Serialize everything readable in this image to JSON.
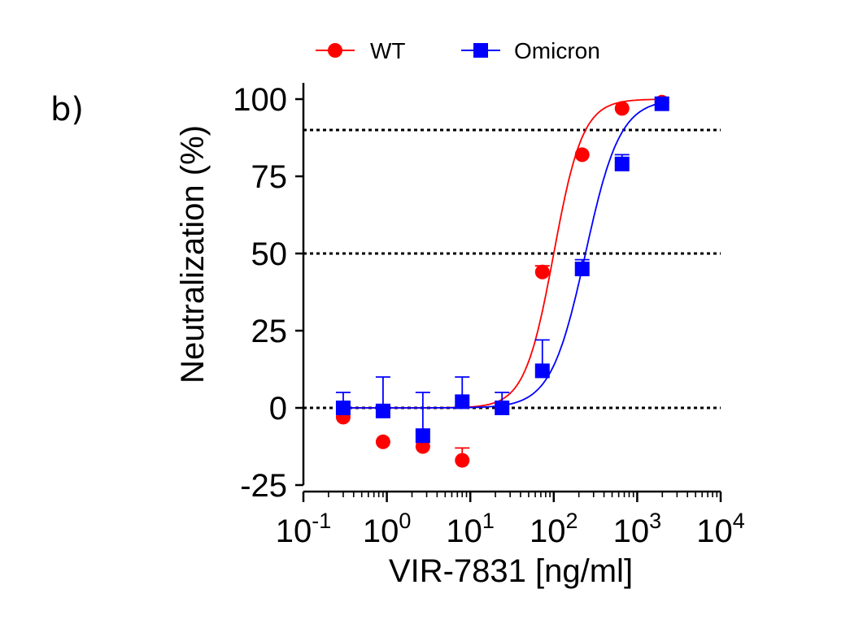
{
  "panel_label": "b)",
  "chart_data": {
    "type": "scatter",
    "xlabel": "VIR-7831 [ng/ml]",
    "ylabel": "Neutralization (%)",
    "x_scale": "log",
    "xlim": [
      0.1,
      10000
    ],
    "ylim": [
      -25,
      100
    ],
    "x_ticks": [
      0.1,
      1,
      10,
      100,
      1000,
      10000
    ],
    "x_tick_labels": [
      {
        "base": "10",
        "exp": "-1"
      },
      {
        "base": "10",
        "exp": "0"
      },
      {
        "base": "10",
        "exp": "1"
      },
      {
        "base": "10",
        "exp": "2"
      },
      {
        "base": "10",
        "exp": "3"
      },
      {
        "base": "10",
        "exp": "4"
      }
    ],
    "y_ticks": [
      -25,
      0,
      25,
      50,
      75,
      100
    ],
    "y_tick_labels": [
      "-25",
      "0",
      "25",
      "50",
      "75",
      "100"
    ],
    "reference_lines": [
      90,
      50,
      0
    ],
    "legend_position": "top",
    "series": [
      {
        "name": "WT",
        "color": "#ff0000",
        "marker": "circle",
        "x": [
          0.3,
          0.9,
          2.7,
          8,
          24,
          73,
          219,
          658,
          1975
        ],
        "y": [
          -3,
          -11,
          -12.5,
          -17,
          0,
          44,
          82,
          97,
          99
        ],
        "error_up": [
          0,
          0,
          0,
          4,
          0,
          2,
          0,
          0,
          0
        ],
        "error_down": [
          0,
          0,
          0,
          0,
          0,
          0,
          0,
          0,
          0
        ],
        "fit": {
          "bottom": 0,
          "top": 100,
          "ec50": 100,
          "hill": 2.5
        }
      },
      {
        "name": "Omicron",
        "color": "#0000ff",
        "marker": "square",
        "x": [
          0.3,
          0.9,
          2.7,
          8,
          24,
          73,
          219,
          658,
          1975
        ],
        "y": [
          0,
          -1,
          -9,
          2,
          0,
          12,
          45,
          79,
          98.5
        ],
        "error_up": [
          5,
          11,
          14,
          8,
          5,
          10,
          3,
          3,
          0
        ],
        "error_down": [
          0,
          0,
          0,
          0,
          0,
          0,
          0,
          0,
          0
        ],
        "fit": {
          "bottom": 0,
          "top": 100,
          "ec50": 240,
          "hill": 2.1
        }
      }
    ]
  }
}
